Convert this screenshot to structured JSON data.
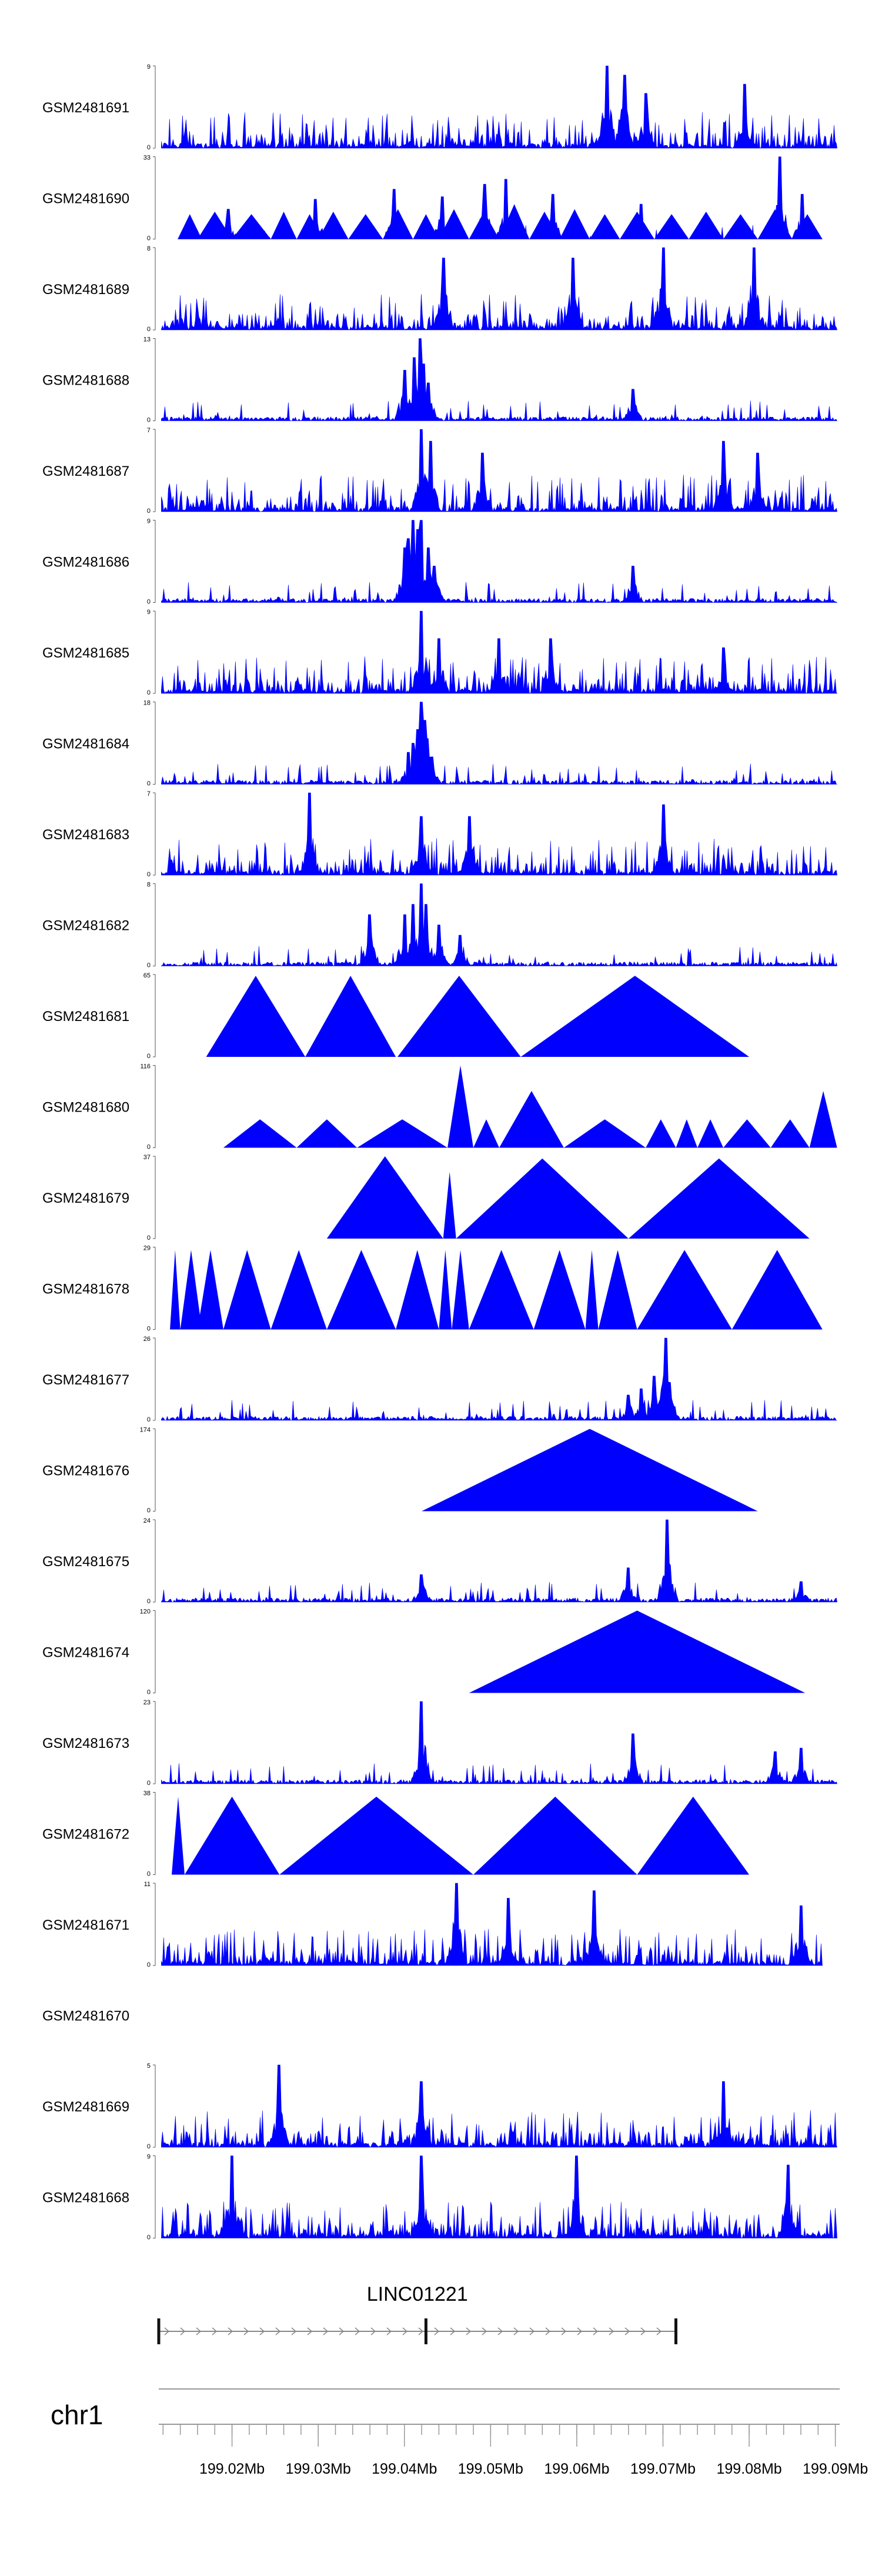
{
  "chart_data": {
    "type": "area",
    "title": "",
    "series_color": "#0000ff",
    "xlim": [
      199.0115,
      199.0905
    ],
    "x_unit": "Mb",
    "tracks": [
      {
        "name": "GSM2481691",
        "ymax": "9",
        "ymin": "0",
        "style": "dense",
        "seed": 11,
        "peaks": [
          [
            199.0635,
            9
          ],
          [
            199.0655,
            8
          ],
          [
            199.068,
            6
          ],
          [
            199.0795,
            7
          ]
        ],
        "start": 199.0118,
        "end": 199.0902
      },
      {
        "name": "GSM2481690",
        "ymax": "33",
        "ymin": "0",
        "style": "mixed",
        "seed": 12,
        "start": 199.0137,
        "end": 199.0885,
        "tri": [
          [
            199.0137,
            199.0165,
            10
          ],
          [
            199.016,
            199.02,
            11
          ],
          [
            199.02,
            199.0245,
            10
          ],
          [
            199.0245,
            199.0275,
            11
          ],
          [
            199.0275,
            199.0305,
            10
          ],
          [
            199.03,
            199.0335,
            11
          ],
          [
            199.0335,
            199.0375,
            10
          ],
          [
            199.0375,
            199.041,
            12
          ],
          [
            199.041,
            199.044,
            10
          ],
          [
            199.044,
            199.0475,
            12
          ],
          [
            199.0475,
            199.051,
            11
          ],
          [
            199.051,
            199.0545,
            14
          ],
          [
            199.0545,
            199.058,
            11
          ],
          [
            199.058,
            199.0615,
            12
          ],
          [
            199.0615,
            199.065,
            10
          ],
          [
            199.065,
            199.069,
            11
          ],
          [
            199.069,
            199.073,
            10
          ],
          [
            199.073,
            199.077,
            11
          ],
          [
            199.077,
            199.081,
            10
          ],
          [
            199.081,
            199.085,
            12
          ],
          [
            199.085,
            199.0885,
            10
          ]
        ],
        "peaks": [
          [
            199.0195,
            12
          ],
          [
            199.0297,
            16
          ],
          [
            199.0388,
            20
          ],
          [
            199.0444,
            17
          ],
          [
            199.0493,
            22
          ],
          [
            199.0518,
            24
          ],
          [
            199.0572,
            18
          ],
          [
            199.0675,
            14
          ],
          [
            199.0835,
            33
          ],
          [
            199.0862,
            18
          ]
        ]
      },
      {
        "name": "GSM2481689",
        "ymax": "8",
        "ymin": "0",
        "style": "dense",
        "seed": 13,
        "peaks": [
          [
            199.0445,
            7
          ],
          [
            199.0595,
            7
          ],
          [
            199.07,
            8
          ],
          [
            199.0805,
            8
          ]
        ],
        "start": 199.0118,
        "end": 199.0902
      },
      {
        "name": "GSM2481688",
        "ymax": "13",
        "ymin": "0",
        "style": "sparse",
        "seed": 14,
        "peaks": [
          [
            199.04,
            8
          ],
          [
            199.0412,
            10
          ],
          [
            199.0418,
            13
          ],
          [
            199.0422,
            9
          ],
          [
            199.0428,
            6
          ],
          [
            199.0665,
            5
          ]
        ],
        "start": 199.0118,
        "end": 199.0902
      },
      {
        "name": "GSM2481687",
        "ymax": "7",
        "ymin": "0",
        "style": "dense",
        "seed": 15,
        "peaks": [
          [
            199.042,
            7
          ],
          [
            199.043,
            6
          ],
          [
            199.049,
            5
          ],
          [
            199.077,
            6
          ],
          [
            199.081,
            5
          ]
        ],
        "start": 199.0118,
        "end": 199.0902
      },
      {
        "name": "GSM2481686",
        "ymax": "9",
        "ymin": "0",
        "style": "sparse",
        "seed": 16,
        "peaks": [
          [
            199.04,
            6
          ],
          [
            199.0405,
            7
          ],
          [
            199.041,
            9
          ],
          [
            199.0415,
            8
          ],
          [
            199.042,
            9
          ],
          [
            199.0428,
            6
          ],
          [
            199.0435,
            4
          ],
          [
            199.0665,
            4
          ]
        ],
        "start": 199.0118,
        "end": 199.0902
      },
      {
        "name": "GSM2481685",
        "ymax": "9",
        "ymin": "0",
        "style": "dense",
        "seed": 17,
        "peaks": [
          [
            199.042,
            9
          ],
          [
            199.044,
            6
          ],
          [
            199.051,
            6
          ],
          [
            199.057,
            6
          ],
          [
            199.077,
            5
          ]
        ],
        "start": 199.0118,
        "end": 199.0902
      },
      {
        "name": "GSM2481684",
        "ymax": "18",
        "ymin": "0",
        "style": "sparse",
        "seed": 18,
        "peaks": [
          [
            199.0405,
            7
          ],
          [
            199.041,
            9
          ],
          [
            199.0415,
            12
          ],
          [
            199.042,
            18
          ],
          [
            199.0423,
            14
          ],
          [
            199.0427,
            10
          ],
          [
            199.0432,
            6
          ]
        ],
        "start": 199.0118,
        "end": 199.0902
      },
      {
        "name": "GSM2481683",
        "ymax": "7",
        "ymin": "0",
        "style": "dense",
        "seed": 19,
        "peaks": [
          [
            199.029,
            7
          ],
          [
            199.042,
            5
          ],
          [
            199.0475,
            5
          ],
          [
            199.07,
            6
          ]
        ],
        "start": 199.0118,
        "end": 199.0902
      },
      {
        "name": "GSM2481682",
        "ymax": "8",
        "ymin": "0",
        "style": "sparse",
        "seed": 20,
        "peaks": [
          [
            199.036,
            5
          ],
          [
            199.04,
            5
          ],
          [
            199.041,
            6
          ],
          [
            199.042,
            8
          ],
          [
            199.0425,
            6
          ],
          [
            199.044,
            4
          ],
          [
            199.0465,
            3
          ]
        ],
        "start": 199.0118,
        "end": 199.0902
      },
      {
        "name": "GSM2481681",
        "ymax": "65",
        "ymin": "0",
        "style": "tri",
        "seed": 21,
        "start": 199.017,
        "end": 199.08,
        "tri": [
          [
            199.017,
            199.0285,
            64
          ],
          [
            199.0285,
            199.039,
            64
          ],
          [
            199.0392,
            199.0535,
            64
          ],
          [
            199.0535,
            199.08,
            64
          ]
        ]
      },
      {
        "name": "GSM2481680",
        "ymax": "116",
        "ymin": "0",
        "style": "tri",
        "seed": 22,
        "start": 199.019,
        "end": 199.0902,
        "tri": [
          [
            199.019,
            199.0275,
            40
          ],
          [
            199.0275,
            199.0345,
            40
          ],
          [
            199.0345,
            199.045,
            40
          ],
          [
            199.045,
            199.048,
            116
          ],
          [
            199.048,
            199.051,
            40
          ],
          [
            199.051,
            199.0585,
            80
          ],
          [
            199.0585,
            199.068,
            40
          ],
          [
            199.068,
            199.0715,
            40
          ],
          [
            199.0715,
            199.074,
            40
          ],
          [
            199.074,
            199.077,
            40
          ],
          [
            199.077,
            199.0825,
            40
          ],
          [
            199.0825,
            199.087,
            40
          ],
          [
            199.087,
            199.0902,
            80
          ]
        ]
      },
      {
        "name": "GSM2481679",
        "ymax": "37",
        "ymin": "0",
        "style": "tri",
        "seed": 23,
        "start": 199.031,
        "end": 199.087,
        "tri": [
          [
            199.031,
            199.0445,
            37
          ],
          [
            199.0445,
            199.046,
            30
          ],
          [
            199.046,
            199.066,
            36
          ],
          [
            199.066,
            199.087,
            36
          ]
        ]
      },
      {
        "name": "GSM2481678",
        "ymax": "29",
        "ymin": "0",
        "style": "tri",
        "seed": 24,
        "start": 199.0128,
        "end": 199.0885,
        "tri": [
          [
            199.0128,
            199.014,
            28
          ],
          [
            199.014,
            199.0165,
            28
          ],
          [
            199.016,
            199.019,
            28
          ],
          [
            199.019,
            199.0245,
            28
          ],
          [
            199.0245,
            199.031,
            28
          ],
          [
            199.031,
            199.039,
            28
          ],
          [
            199.039,
            199.044,
            28
          ],
          [
            199.044,
            199.0455,
            28
          ],
          [
            199.0455,
            199.0475,
            28
          ],
          [
            199.0475,
            199.055,
            28
          ],
          [
            199.055,
            199.061,
            28
          ],
          [
            199.061,
            199.0625,
            28
          ],
          [
            199.0625,
            199.067,
            28
          ],
          [
            199.067,
            199.078,
            28
          ],
          [
            199.078,
            199.0885,
            28
          ]
        ]
      },
      {
        "name": "GSM2481677",
        "ymax": "26",
        "ymin": "0",
        "style": "sparse",
        "seed": 25,
        "peaks": [
          [
            199.066,
            8
          ],
          [
            199.0675,
            10
          ],
          [
            199.069,
            14
          ],
          [
            199.0703,
            26
          ],
          [
            199.0708,
            12
          ]
        ],
        "start": 199.0118,
        "end": 199.0902
      },
      {
        "name": "GSM2481676",
        "ymax": "174",
        "ymin": "0",
        "style": "tri",
        "seed": 26,
        "start": 199.042,
        "end": 199.081,
        "tri": [
          [
            199.042,
            199.081,
            174
          ]
        ]
      },
      {
        "name": "GSM2481675",
        "ymax": "24",
        "ymin": "0",
        "style": "sparse",
        "seed": 27,
        "peaks": [
          [
            199.042,
            8
          ],
          [
            199.066,
            10
          ],
          [
            199.0705,
            24
          ],
          [
            199.086,
            6
          ]
        ],
        "start": 199.0118,
        "end": 199.0902
      },
      {
        "name": "GSM2481674",
        "ymax": "120",
        "ymin": "0",
        "style": "tri",
        "seed": 28,
        "start": 199.0475,
        "end": 199.0865,
        "tri": [
          [
            199.0475,
            199.0865,
            120
          ]
        ]
      },
      {
        "name": "GSM2481673",
        "ymax": "23",
        "ymin": "0",
        "style": "sparse",
        "seed": 29,
        "peaks": [
          [
            199.042,
            23
          ],
          [
            199.0665,
            14
          ],
          [
            199.083,
            9
          ],
          [
            199.086,
            10
          ]
        ],
        "start": 199.0118,
        "end": 199.0902
      },
      {
        "name": "GSM2481672",
        "ymax": "38",
        "ymin": "0",
        "style": "tri",
        "seed": 30,
        "start": 199.013,
        "end": 199.08,
        "tri": [
          [
            199.013,
            199.0145,
            36
          ],
          [
            199.0145,
            199.0255,
            36
          ],
          [
            199.0255,
            199.048,
            36
          ],
          [
            199.048,
            199.067,
            36
          ],
          [
            199.067,
            199.08,
            36
          ]
        ]
      },
      {
        "name": "GSM2481671",
        "ymax": "11",
        "ymin": "0",
        "style": "dense",
        "seed": 31,
        "peaks": [
          [
            199.046,
            11
          ],
          [
            199.052,
            9
          ],
          [
            199.062,
            10
          ],
          [
            199.086,
            8
          ]
        ],
        "start": 199.0118,
        "end": 199.0885
      },
      {
        "name": "GSM2481670",
        "ymax": "",
        "ymin": "",
        "style": "empty",
        "seed": 32
      },
      {
        "name": "GSM2481669",
        "ymax": "5",
        "ymin": "0",
        "style": "dense",
        "seed": 33,
        "peaks": [
          [
            199.0255,
            5
          ],
          [
            199.042,
            4
          ],
          [
            199.077,
            4
          ]
        ],
        "start": 199.0118,
        "end": 199.0902
      },
      {
        "name": "GSM2481668",
        "ymax": "9",
        "ymin": "0",
        "style": "dense",
        "seed": 34,
        "peaks": [
          [
            199.02,
            9
          ],
          [
            199.042,
            9
          ],
          [
            199.06,
            9
          ],
          [
            199.0845,
            8
          ]
        ],
        "start": 199.0118,
        "end": 199.0902
      }
    ],
    "gene": {
      "label": "LINC01221",
      "start": 199.0115,
      "end": 199.0715,
      "exons": [
        199.0115,
        199.0425,
        199.0715
      ],
      "strand": "+"
    },
    "chromosome": "chr1",
    "xticks": [
      {
        "value": 199.02,
        "label": "199.02Mb"
      },
      {
        "value": 199.03,
        "label": "199.03Mb"
      },
      {
        "value": 199.04,
        "label": "199.04Mb"
      },
      {
        "value": 199.05,
        "label": "199.05Mb"
      },
      {
        "value": 199.06,
        "label": "199.06Mb"
      },
      {
        "value": 199.07,
        "label": "199.07Mb"
      },
      {
        "value": 199.08,
        "label": "199.08Mb"
      },
      {
        "value": 199.09,
        "label": "199.09Mb"
      }
    ],
    "minor_tick_step": 0.002
  }
}
